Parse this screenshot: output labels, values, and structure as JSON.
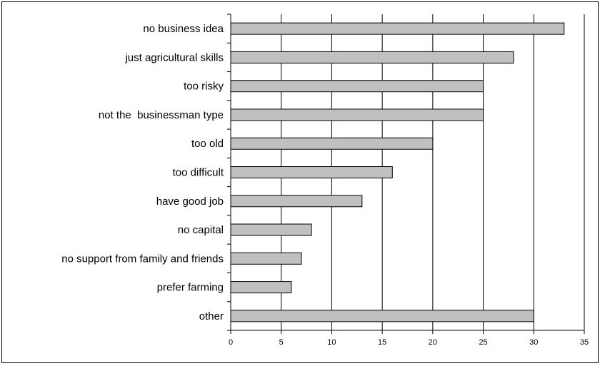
{
  "chart_data": {
    "type": "bar",
    "orientation": "horizontal",
    "categories": [
      "no business idea",
      "just agricultural skills",
      "too risky",
      "not the  businessman type",
      "too old",
      "too difficult",
      "have good job",
      "no capital",
      "no support from family and friends",
      "prefer farming",
      "other"
    ],
    "values": [
      33,
      28,
      25,
      25,
      20,
      16,
      13,
      8,
      7,
      6,
      30
    ],
    "xlim": [
      0,
      35
    ],
    "xticks": [
      "0",
      "5",
      "10",
      "15",
      "20",
      "25",
      "30",
      "35"
    ],
    "title": "",
    "xlabel": "",
    "ylabel": "",
    "grid": "vertical",
    "bar_color": "#c0c0c0",
    "bar_edge_color": "#000000"
  }
}
